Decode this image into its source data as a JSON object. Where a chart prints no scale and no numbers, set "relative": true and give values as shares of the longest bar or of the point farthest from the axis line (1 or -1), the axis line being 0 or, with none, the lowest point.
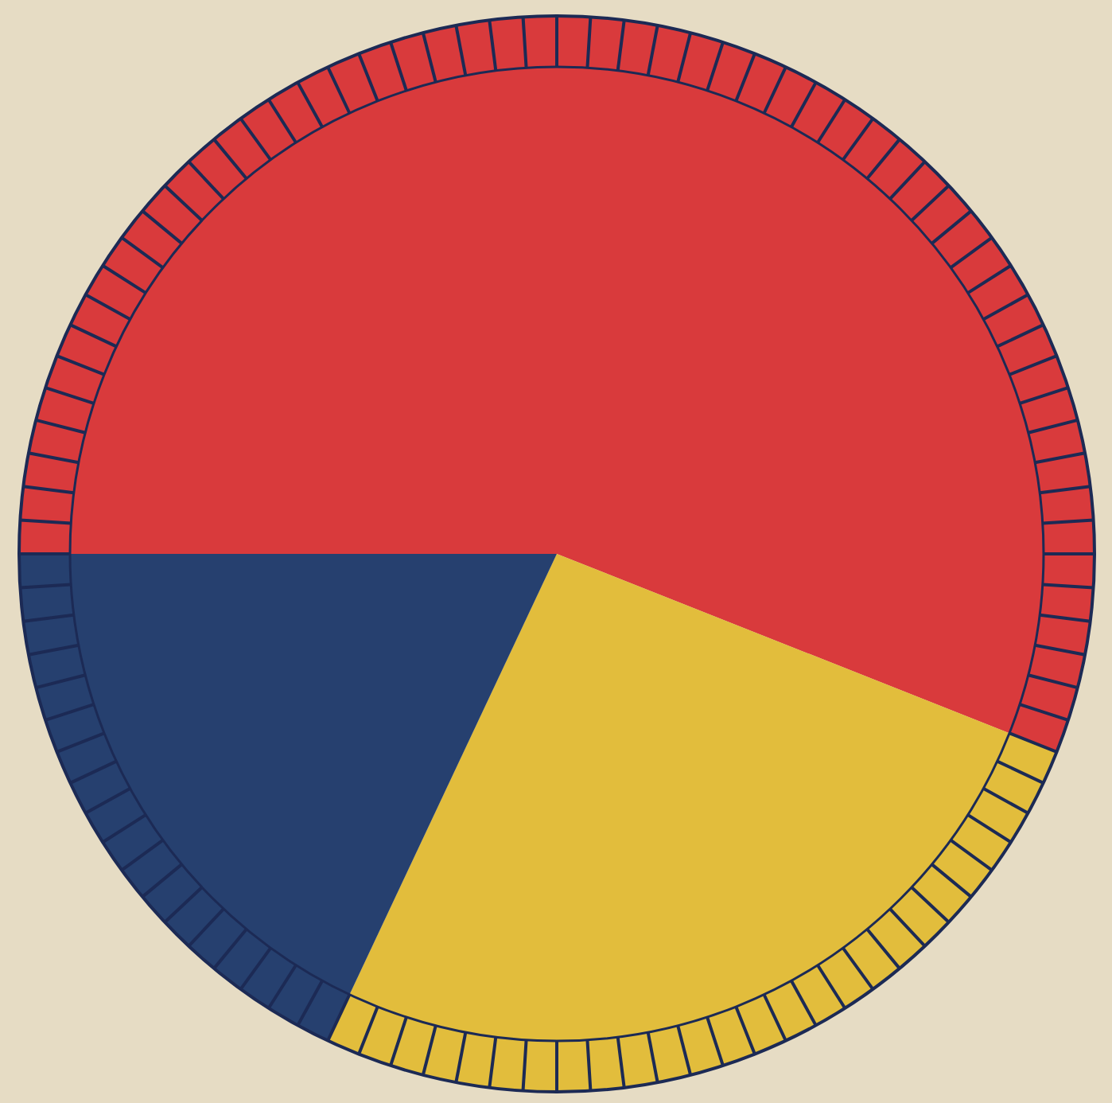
{
  "chart_data": {
    "type": "pie",
    "relative": true,
    "categories": [
      null,
      null,
      null
    ],
    "values": [
      56,
      26,
      18
    ],
    "colors": [
      "#d93a3c",
      "#e2bd3c",
      "#26406f"
    ]
  }
}
